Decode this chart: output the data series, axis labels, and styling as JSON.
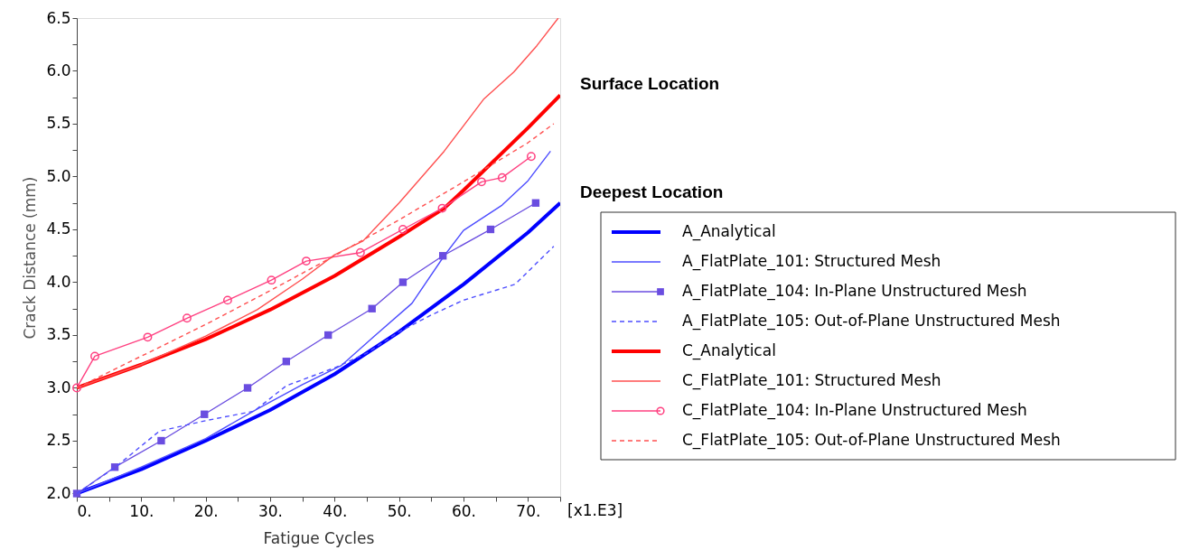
{
  "chart_data": {
    "type": "line",
    "xlabel": "Fatigue Cycles",
    "ylabel": "Crack Distance (mm)",
    "xlim": [
      0,
      75
    ],
    "ylim": [
      1.97,
      6.5
    ],
    "xticks": [
      {
        "value": 0,
        "label": "0."
      },
      {
        "value": 5,
        "label": null
      },
      {
        "value": 10,
        "label": "10."
      },
      {
        "value": 15,
        "label": null
      },
      {
        "value": 20,
        "label": "20."
      },
      {
        "value": 25,
        "label": null
      },
      {
        "value": 30,
        "label": "30."
      },
      {
        "value": 35,
        "label": null
      },
      {
        "value": 40,
        "label": "40."
      },
      {
        "value": 45,
        "label": null
      },
      {
        "value": 50,
        "label": "50."
      },
      {
        "value": 55,
        "label": null
      },
      {
        "value": 60,
        "label": "60."
      },
      {
        "value": 65,
        "label": null
      },
      {
        "value": 70,
        "label": "70."
      },
      {
        "value": 75,
        "label": null
      }
    ],
    "yticks": [
      {
        "value": 2,
        "label": "2.0"
      },
      {
        "value": 2.25,
        "label": null
      },
      {
        "value": 2.5,
        "label": "2.5"
      },
      {
        "value": 2.75,
        "label": null
      },
      {
        "value": 3,
        "label": "3.0"
      },
      {
        "value": 3.25,
        "label": null
      },
      {
        "value": 3.5,
        "label": "3.5"
      },
      {
        "value": 3.75,
        "label": null
      },
      {
        "value": 4,
        "label": "4.0"
      },
      {
        "value": 4.25,
        "label": null
      },
      {
        "value": 4.5,
        "label": "4.5"
      },
      {
        "value": 4.75,
        "label": null
      },
      {
        "value": 5,
        "label": "5.0"
      },
      {
        "value": 5.25,
        "label": null
      },
      {
        "value": 5.5,
        "label": "5.5"
      },
      {
        "value": 5.75,
        "label": null
      },
      {
        "value": 6,
        "label": "6.0"
      },
      {
        "value": 6.25,
        "label": null
      },
      {
        "value": 6.5,
        "label": "6.5"
      }
    ],
    "grid": false,
    "legend": "right",
    "annotations": [
      {
        "text": "Surface Location",
        "x": 75,
        "y": 5.77
      },
      {
        "text": "Deepest Location",
        "x": 75,
        "y": 4.75
      },
      "[x1.E3]"
    ],
    "series": [
      {
        "name": "A_Analytical",
        "color": "#0000ff",
        "line_style": "solid",
        "marker": "none",
        "x": [
          0,
          10,
          20,
          30,
          40,
          50,
          60,
          70,
          75
        ],
        "values": [
          2.0,
          2.23,
          2.5,
          2.79,
          3.13,
          3.53,
          3.98,
          4.47,
          4.75
        ]
      },
      {
        "name": "A_FlatPlate_101: Structured Mesh",
        "color": "#4d4dff",
        "line_style": "solid",
        "marker": "none",
        "x": [
          0,
          10,
          20,
          28,
          35,
          41,
          46,
          52,
          57,
          60,
          66,
          70,
          73.5
        ],
        "values": [
          2.0,
          2.25,
          2.52,
          2.8,
          3.03,
          3.21,
          3.48,
          3.8,
          4.25,
          4.49,
          4.73,
          4.96,
          5.24
        ]
      },
      {
        "name": "A_FlatPlate_104: In-Plane Unstructured Mesh",
        "color": "#6a4de0",
        "line_style": "solid",
        "marker": "square",
        "x": [
          0,
          5.9,
          13.1,
          19.8,
          26.5,
          32.5,
          39,
          45.8,
          50.6,
          56.8,
          64.2,
          71.2
        ],
        "values": [
          2.0,
          2.25,
          2.5,
          2.75,
          3.0,
          3.25,
          3.5,
          3.75,
          4.0,
          4.25,
          4.5,
          4.75
        ]
      },
      {
        "name": "A_FlatPlate_105: Out-of-Plane Unstructured Mesh",
        "color": "#4d4dff",
        "line_style": "dashed",
        "marker": "none",
        "x": [
          0,
          6,
          12.8,
          20,
          27.5,
          32.5,
          40,
          45,
          50,
          55,
          60,
          68,
          74
        ],
        "values": [
          2.0,
          2.25,
          2.59,
          2.69,
          2.78,
          3.02,
          3.19,
          3.33,
          3.53,
          3.69,
          3.83,
          3.98,
          4.34
        ]
      },
      {
        "name": "C_Analytical",
        "color": "#ff0000",
        "line_style": "solid",
        "marker": "none",
        "x": [
          0,
          10,
          20,
          30,
          40,
          50,
          57,
          60,
          70,
          75
        ],
        "values": [
          3.0,
          3.22,
          3.46,
          3.74,
          4.06,
          4.43,
          4.7,
          4.87,
          5.46,
          5.77
        ]
      },
      {
        "name": "C_FlatPlate_101: Structured Mesh",
        "color": "#ff5050",
        "line_style": "solid",
        "marker": "none",
        "x": [
          0,
          10,
          20,
          28,
          35,
          40,
          44.4,
          50,
          57,
          63.1,
          67.8,
          71.4,
          74.7
        ],
        "values": [
          3.0,
          3.22,
          3.49,
          3.74,
          4.03,
          4.26,
          4.39,
          4.75,
          5.24,
          5.73,
          5.99,
          6.24,
          6.5
        ]
      },
      {
        "name": "C_FlatPlate_104: In-Plane Unstructured Mesh",
        "color": "#ff4080",
        "line_style": "solid",
        "marker": "circle",
        "x": [
          0,
          2.8,
          11,
          17.1,
          23.4,
          30.2,
          35.6,
          44,
          50.6,
          56.7,
          62.8,
          66,
          70.5
        ],
        "values": [
          3.0,
          3.3,
          3.48,
          3.66,
          3.83,
          4.02,
          4.2,
          4.28,
          4.5,
          4.7,
          4.95,
          4.99,
          5.19
        ]
      },
      {
        "name": "C_FlatPlate_105: Out-of-Plane Unstructured Mesh",
        "color": "#ff5050",
        "line_style": "dashed",
        "marker": "none",
        "x": [
          0,
          10,
          20,
          30,
          40,
          50,
          60,
          70,
          74
        ],
        "values": [
          3.0,
          3.3,
          3.6,
          3.92,
          4.25,
          4.59,
          4.95,
          5.32,
          5.5
        ]
      }
    ]
  }
}
